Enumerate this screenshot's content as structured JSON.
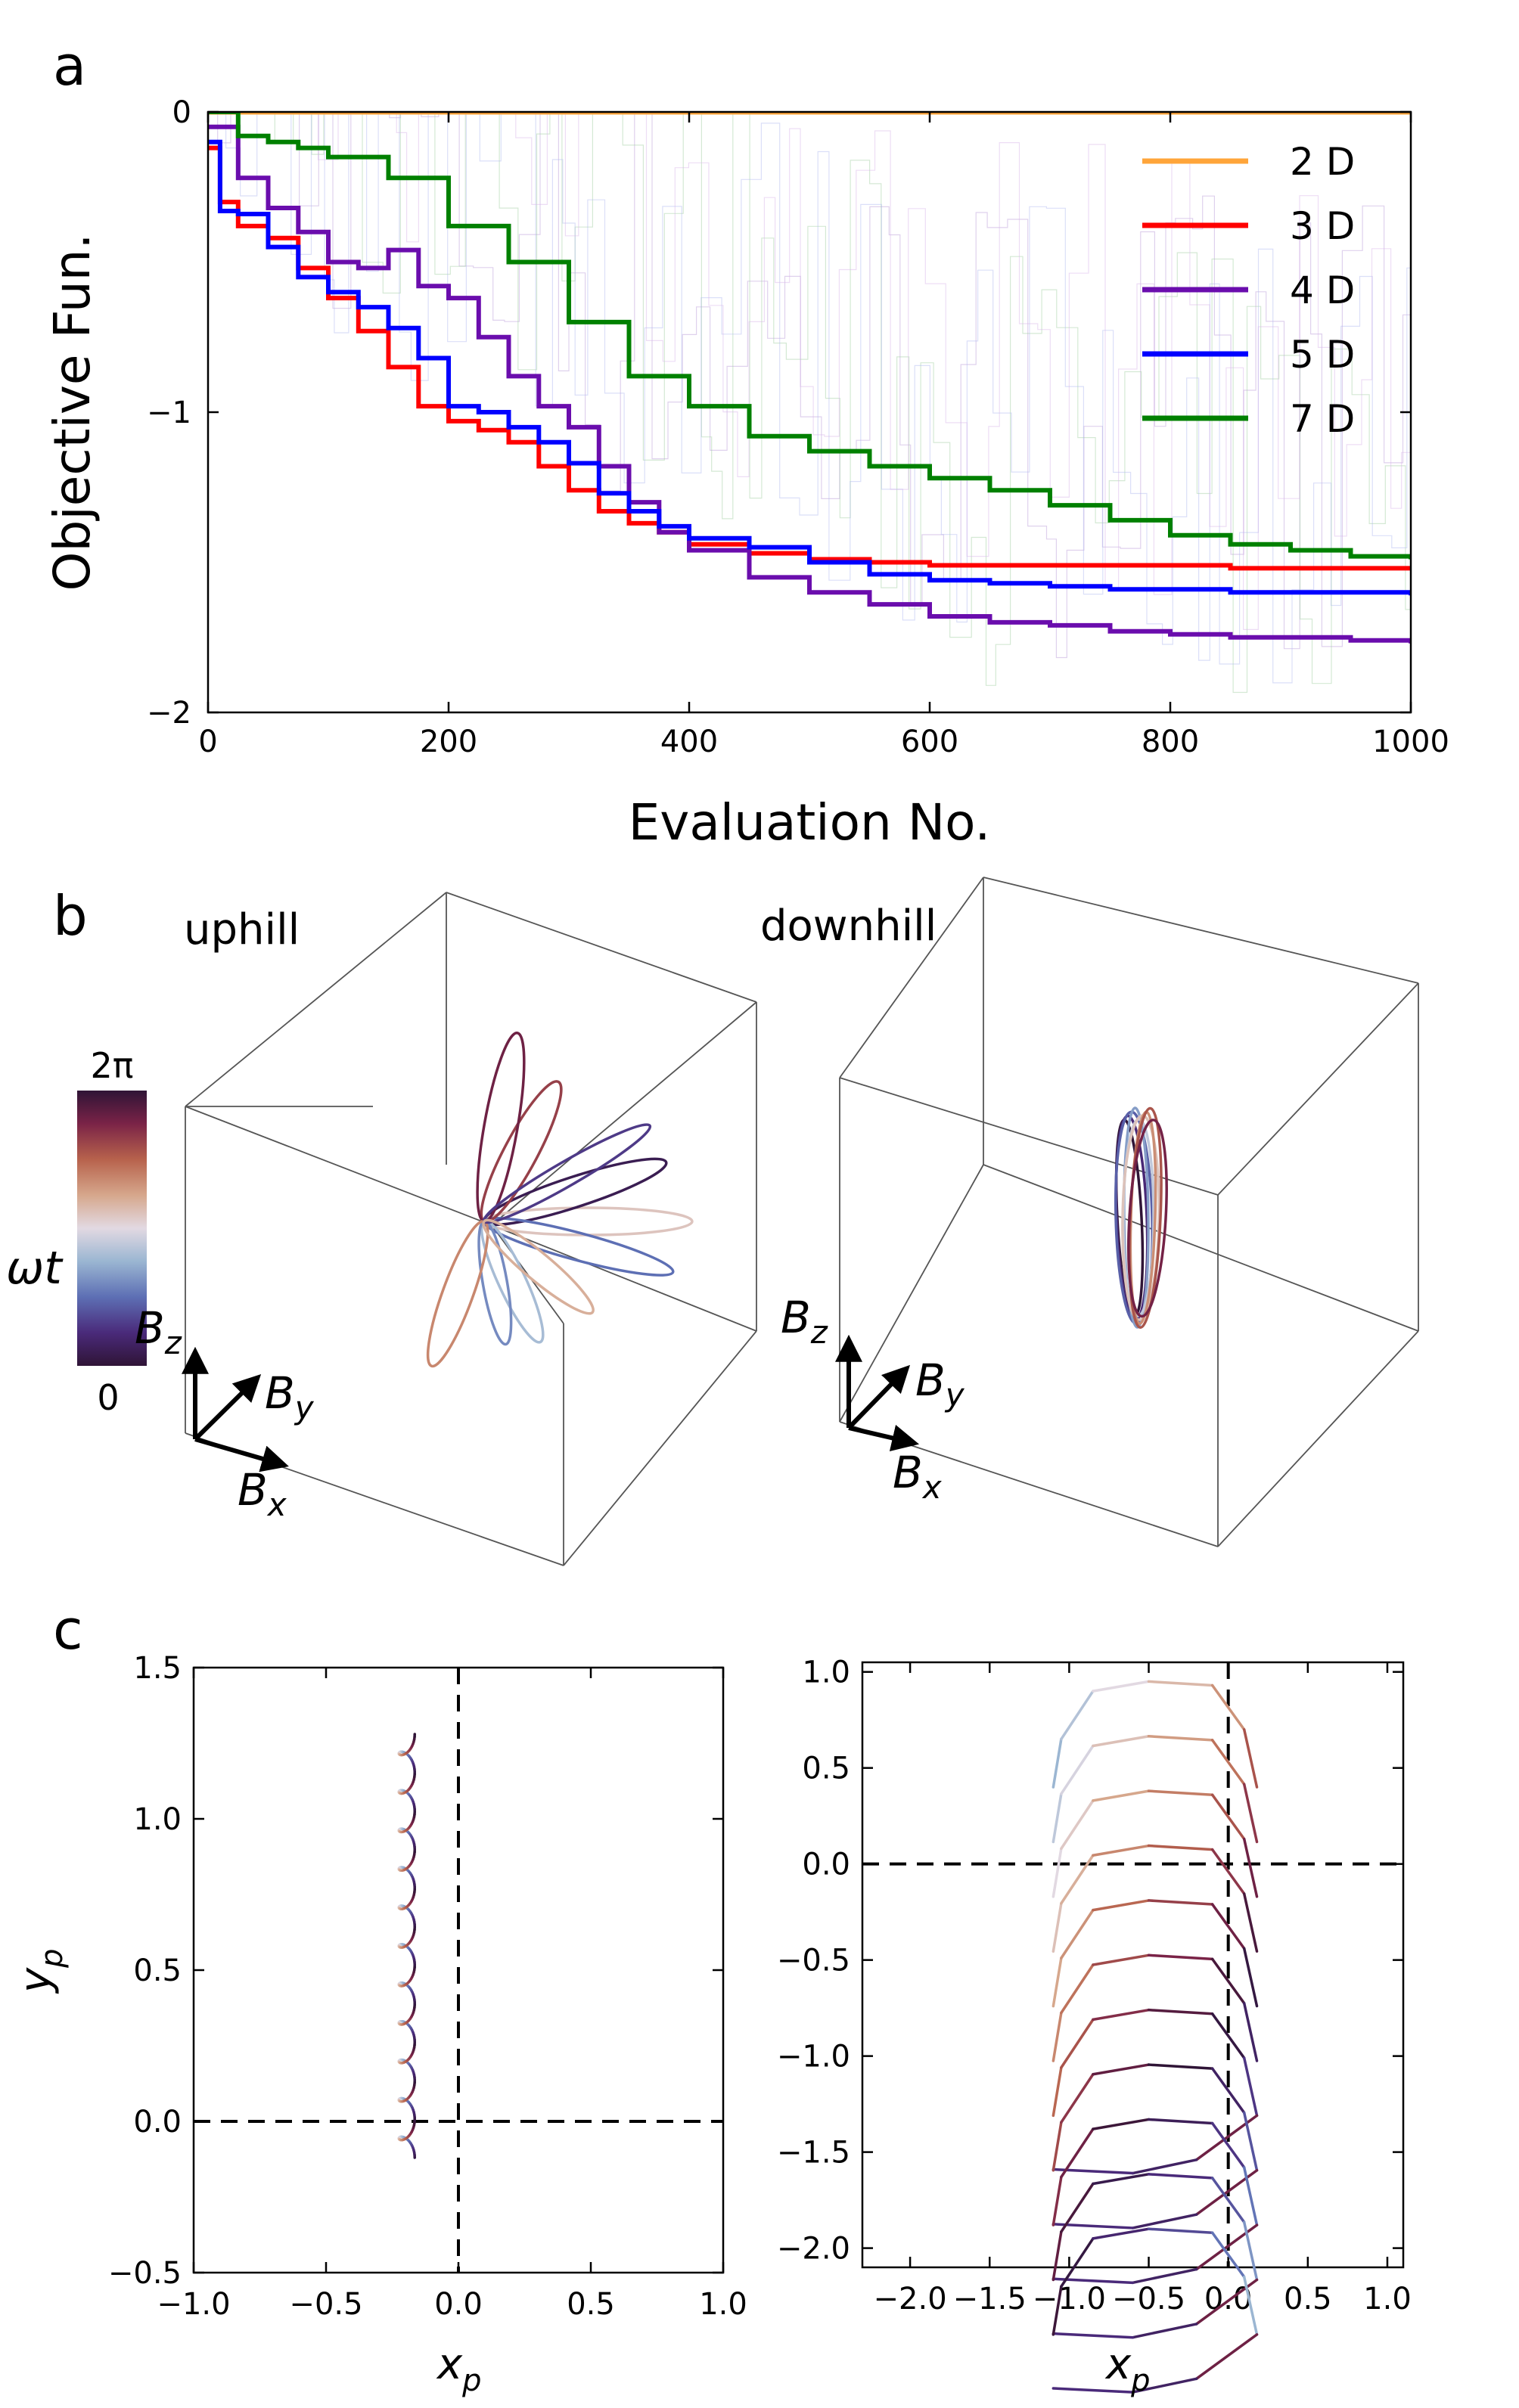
{
  "panel_labels": {
    "a": "a",
    "b": "b",
    "c": "c"
  },
  "chart_data": [
    {
      "id": "a",
      "type": "line",
      "xlabel": "Evaluation No.",
      "ylabel": "Objective Fun.",
      "xlim": [
        0,
        1000
      ],
      "ylim": [
        -2,
        0
      ],
      "xticks": [
        0,
        200,
        400,
        600,
        800,
        1000
      ],
      "yticks": [
        0,
        -1,
        -2
      ],
      "legend_position": "top-right",
      "series": [
        {
          "name": "2 D",
          "color": "#ffa53a",
          "x": [
            0,
            100,
            200,
            300,
            400,
            500,
            600,
            700,
            800,
            900,
            1000
          ],
          "y": [
            0,
            0,
            0,
            0,
            0,
            0,
            0,
            0,
            0,
            0,
            0
          ]
        },
        {
          "name": "3 D",
          "color": "#ff0000",
          "x": [
            0,
            10,
            25,
            50,
            75,
            100,
            125,
            150,
            175,
            200,
            225,
            250,
            275,
            300,
            325,
            350,
            375,
            400,
            450,
            500,
            550,
            600,
            650,
            700,
            750,
            800,
            850,
            900,
            950,
            1000
          ],
          "y": [
            -0.12,
            -0.3,
            -0.38,
            -0.42,
            -0.52,
            -0.62,
            -0.73,
            -0.85,
            -0.98,
            -1.03,
            -1.06,
            -1.1,
            -1.18,
            -1.26,
            -1.33,
            -1.37,
            -1.4,
            -1.44,
            -1.47,
            -1.49,
            -1.5,
            -1.51,
            -1.51,
            -1.51,
            -1.51,
            -1.51,
            -1.52,
            -1.52,
            -1.52,
            -1.52
          ]
        },
        {
          "name": "4 D",
          "color": "#6a0dad",
          "x": [
            0,
            25,
            50,
            75,
            100,
            125,
            150,
            175,
            200,
            225,
            250,
            275,
            300,
            325,
            350,
            375,
            400,
            450,
            500,
            550,
            600,
            650,
            700,
            750,
            800,
            850,
            900,
            950,
            1000
          ],
          "y": [
            -0.05,
            -0.22,
            -0.32,
            -0.4,
            -0.5,
            -0.52,
            -0.46,
            -0.58,
            -0.62,
            -0.75,
            -0.88,
            -0.98,
            -1.05,
            -1.18,
            -1.3,
            -1.4,
            -1.46,
            -1.55,
            -1.6,
            -1.64,
            -1.68,
            -1.7,
            -1.71,
            -1.73,
            -1.74,
            -1.75,
            -1.75,
            -1.76,
            -1.77
          ]
        },
        {
          "name": "5 D",
          "color": "#0000ff",
          "x": [
            0,
            10,
            25,
            50,
            75,
            100,
            125,
            150,
            175,
            200,
            225,
            250,
            275,
            300,
            325,
            350,
            375,
            400,
            450,
            500,
            550,
            600,
            650,
            700,
            750,
            800,
            850,
            900,
            950,
            1000
          ],
          "y": [
            -0.1,
            -0.33,
            -0.34,
            -0.45,
            -0.55,
            -0.6,
            -0.65,
            -0.72,
            -0.82,
            -0.98,
            -1.0,
            -1.05,
            -1.1,
            -1.17,
            -1.27,
            -1.33,
            -1.38,
            -1.42,
            -1.45,
            -1.5,
            -1.54,
            -1.56,
            -1.57,
            -1.58,
            -1.59,
            -1.59,
            -1.6,
            -1.6,
            -1.6,
            -1.61
          ]
        },
        {
          "name": "7 D",
          "color": "#008000",
          "x": [
            0,
            25,
            50,
            75,
            100,
            150,
            200,
            250,
            300,
            350,
            400,
            450,
            500,
            550,
            600,
            650,
            700,
            750,
            800,
            850,
            900,
            950,
            1000
          ],
          "y": [
            0,
            -0.08,
            -0.1,
            -0.12,
            -0.15,
            -0.22,
            -0.38,
            -0.5,
            -0.7,
            -0.88,
            -0.98,
            -1.08,
            -1.13,
            -1.18,
            -1.22,
            -1.26,
            -1.31,
            -1.36,
            -1.41,
            -1.44,
            -1.46,
            -1.48,
            -1.49
          ]
        }
      ]
    },
    {
      "id": "b",
      "type": "3d-trajectory",
      "titles": [
        "uphill",
        "downhill"
      ],
      "colorbar": {
        "label": "ωt",
        "min_label": "0",
        "max_label": "2π",
        "colormap": "twilight"
      },
      "axis_labels": {
        "z": "B",
        "z_sub": "z",
        "y": "B",
        "y_sub": "y",
        "x": "B",
        "x_sub": "x"
      }
    },
    {
      "id": "c-left",
      "type": "line",
      "xlabel": "x",
      "xlabel_sub": "p",
      "ylabel": "y",
      "ylabel_sub": "p",
      "xlim": [
        -1.0,
        1.0
      ],
      "ylim": [
        -0.5,
        1.5
      ],
      "xticks": [
        -1.0,
        -0.5,
        0.0,
        0.5,
        1.0
      ],
      "yticks": [
        -0.5,
        0.0,
        0.5,
        1.0,
        1.5
      ],
      "reference_lines": {
        "x": 0,
        "y": 0,
        "style": "dashed"
      },
      "trajectory": {
        "x_center": -0.18,
        "y_start": -0.12,
        "y_end": 1.28,
        "loops": 11
      }
    },
    {
      "id": "c-right",
      "type": "line",
      "xlabel": "x",
      "xlabel_sub": "p",
      "xlim": [
        -2.3,
        1.1
      ],
      "ylim": [
        -2.1,
        1.05
      ],
      "xticks": [
        -2.0,
        -1.5,
        -1.0,
        -0.5,
        0.0,
        0.5,
        1.0
      ],
      "yticks": [
        1.0,
        0.5,
        0.0,
        -0.5,
        -1.0,
        -1.5,
        -2.0
      ],
      "reference_lines": {
        "x": 0,
        "y": 0,
        "style": "dashed"
      },
      "trajectory": {
        "arcs": 11,
        "y_top": 0.95,
        "y_bottom": -2.0
      }
    }
  ]
}
